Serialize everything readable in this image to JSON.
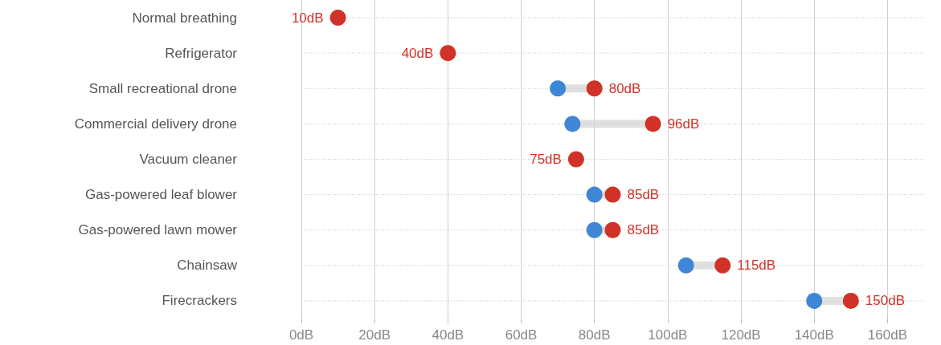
{
  "chart_data": {
    "type": "scatter",
    "orientation": "horizontal",
    "categories": [
      "Normal breathing",
      "Refrigerator",
      "Small recreational drone",
      "Commercial delivery drone",
      "Vacuum cleaner",
      "Gas-powered leaf blower",
      "Gas-powered lawn mower",
      "Chainsaw",
      "Firecrackers"
    ],
    "series": [
      {
        "color": "#3f86d6",
        "values": [
          null,
          null,
          70,
          74,
          null,
          80,
          80,
          105,
          140
        ]
      },
      {
        "color": "#d03228",
        "values": [
          10,
          40,
          80,
          96,
          75,
          85,
          85,
          115,
          150
        ],
        "value_labels": [
          "10dB",
          "40dB",
          "80dB",
          "96dB",
          "75dB",
          "85dB",
          "85dB",
          "115dB",
          "150dB"
        ]
      }
    ],
    "xlim": [
      0,
      170
    ],
    "xticks": [
      {
        "value": 0,
        "label": "0dB"
      },
      {
        "value": 20,
        "label": "20dB"
      },
      {
        "value": 40,
        "label": "40dB"
      },
      {
        "value": 60,
        "label": "60dB"
      },
      {
        "value": 80,
        "label": "80dB"
      },
      {
        "value": 100,
        "label": "100dB"
      },
      {
        "value": 120,
        "label": "120dB"
      },
      {
        "value": 140,
        "label": "140dB"
      },
      {
        "value": 160,
        "label": "160dB"
      }
    ],
    "grid": true,
    "marker": "circle"
  }
}
